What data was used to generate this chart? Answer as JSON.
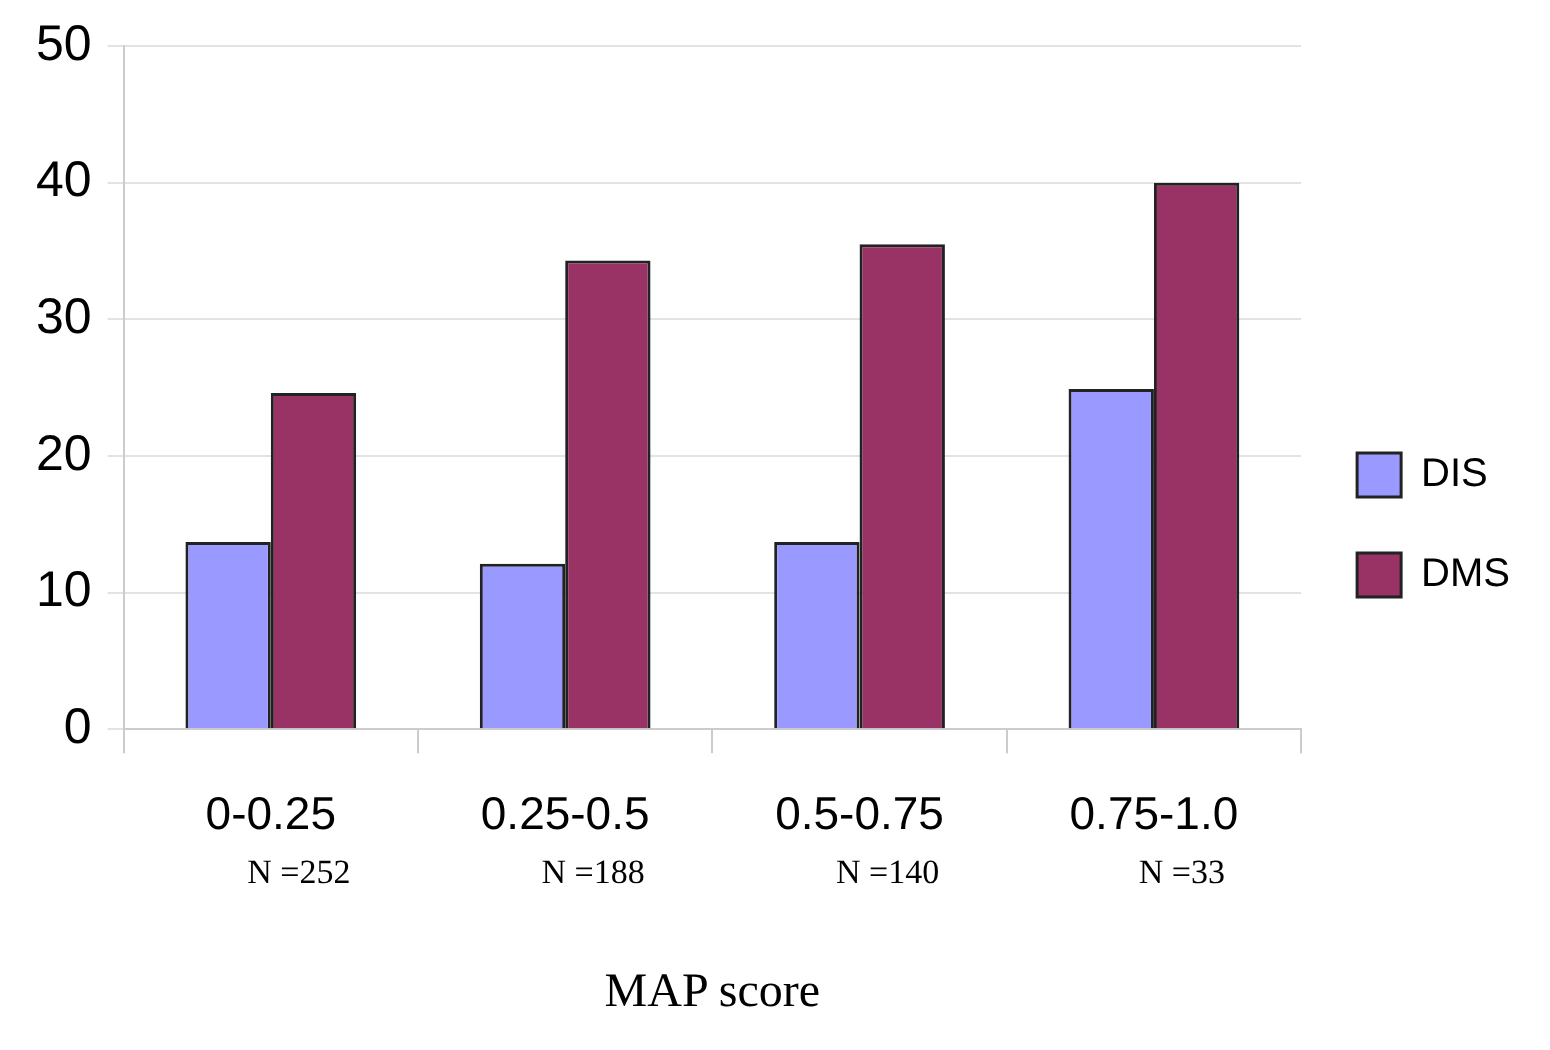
{
  "chart_data": {
    "type": "bar",
    "xlabel": "MAP score",
    "categories": [
      "0-0.25",
      "0.25-0.5",
      "0.5-0.75",
      "0.75-1.0"
    ],
    "series": [
      {
        "name": "DIS",
        "color": "#9999ff",
        "values": [
          13.7,
          12.1,
          13.7,
          24.9
        ]
      },
      {
        "name": "DMS",
        "color": "#993366",
        "values": [
          24.6,
          34.3,
          35.5,
          40
        ]
      }
    ],
    "ylim": [
      0,
      50
    ],
    "yticks": [
      0,
      10,
      20,
      30,
      40,
      50
    ],
    "grid": "y",
    "legend": "right",
    "annotations": [
      "N =252",
      "N =188",
      "N =140",
      "N =33"
    ]
  }
}
